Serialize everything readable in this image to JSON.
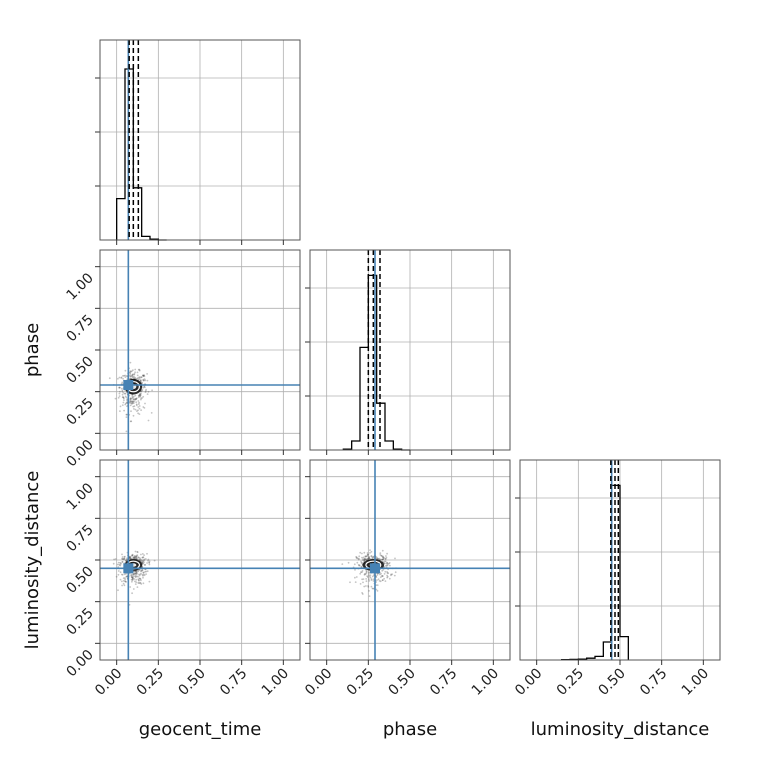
{
  "chart_data": {
    "type": "corner",
    "parameters": [
      "geocent_time",
      "phase",
      "luminosity_distance"
    ],
    "axis_labels": {
      "x": [
        "geocent_time",
        "phase",
        "luminosity_distance"
      ],
      "y": [
        "phase",
        "luminosity_distance"
      ]
    },
    "axis_range": [
      -0.1,
      1.1
    ],
    "tick_values": [
      0.0,
      0.25,
      0.5,
      0.75,
      1.0
    ],
    "tick_labels": [
      "0.00",
      "0.25",
      "0.50",
      "0.75",
      "1.00"
    ],
    "grid": true,
    "injection": {
      "geocent_time": 0.07,
      "phase": 0.29,
      "luminosity_distance": 0.45
    },
    "truth_color": "#4682b4",
    "histograms": [
      {
        "parameter": "geocent_time",
        "bin_edges": [
          0.0,
          0.05,
          0.1,
          0.15,
          0.2,
          0.25,
          0.3
        ],
        "density": [
          0.23,
          0.95,
          0.29,
          0.02,
          0.005,
          0.0
        ],
        "quantiles": [
          0.075,
          0.1,
          0.13
        ]
      },
      {
        "parameter": "phase",
        "bin_edges": [
          0.1,
          0.15,
          0.2,
          0.25,
          0.3,
          0.35,
          0.4,
          0.45,
          0.5
        ],
        "density": [
          0.005,
          0.05,
          0.57,
          0.97,
          0.26,
          0.05,
          0.005,
          0.0
        ],
        "quantiles": [
          0.25,
          0.28,
          0.32
        ]
      },
      {
        "parameter": "luminosity_distance",
        "bin_edges": [
          0.15,
          0.2,
          0.25,
          0.3,
          0.35,
          0.4,
          0.45,
          0.5,
          0.55
        ],
        "density": [
          0.002,
          0.003,
          0.005,
          0.01,
          0.02,
          0.1,
          0.97,
          0.13
        ],
        "quantiles": [
          0.445,
          0.47,
          0.49
        ]
      }
    ],
    "scatter_2d": [
      {
        "x": "geocent_time",
        "y": "phase",
        "center": [
          0.1,
          0.28
        ],
        "spread": [
          0.045,
          0.04
        ]
      },
      {
        "x": "geocent_time",
        "y": "luminosity_distance",
        "center": [
          0.1,
          0.47
        ],
        "spread": [
          0.045,
          0.03
        ]
      },
      {
        "x": "phase",
        "y": "luminosity_distance",
        "center": [
          0.28,
          0.47
        ],
        "spread": [
          0.055,
          0.03
        ]
      }
    ]
  }
}
